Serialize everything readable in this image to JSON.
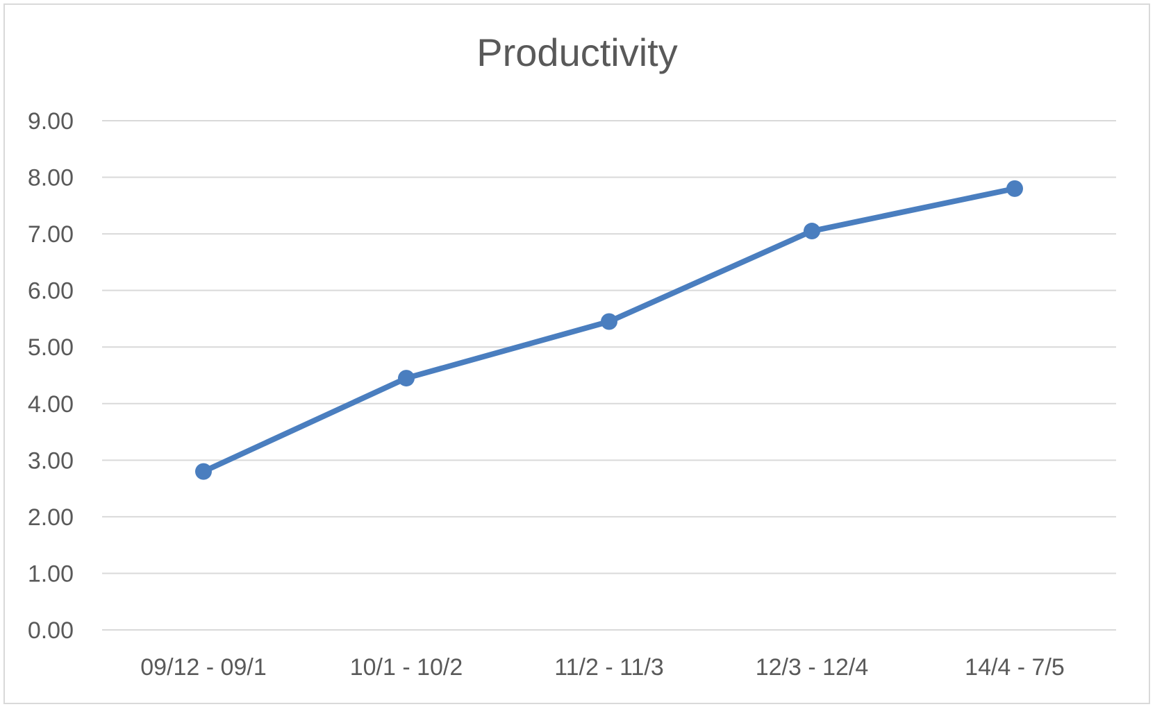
{
  "chart_data": {
    "type": "line",
    "title": "Productivity",
    "xlabel": "",
    "ylabel": "",
    "categories": [
      "09/12 - 09/1",
      "10/1 - 10/2",
      "11/2 - 11/3",
      "12/3 - 12/4",
      "14/4 - 7/5"
    ],
    "series": [
      {
        "values": [
          2.8,
          4.45,
          5.45,
          7.05,
          7.8
        ]
      }
    ],
    "ylim": [
      0,
      9
    ],
    "y_ticks": [
      "0.00",
      "1.00",
      "2.00",
      "3.00",
      "4.00",
      "5.00",
      "6.00",
      "7.00",
      "8.00",
      "9.00"
    ],
    "y_tick_values": [
      0,
      1,
      2,
      3,
      4,
      5,
      6,
      7,
      8,
      9
    ],
    "grid": true,
    "legend": "none",
    "markers": true,
    "colors": {
      "series": "#4a7ebf",
      "grid": "#d9d9d9",
      "text": "#595959",
      "border": "#d9d9d9"
    }
  }
}
